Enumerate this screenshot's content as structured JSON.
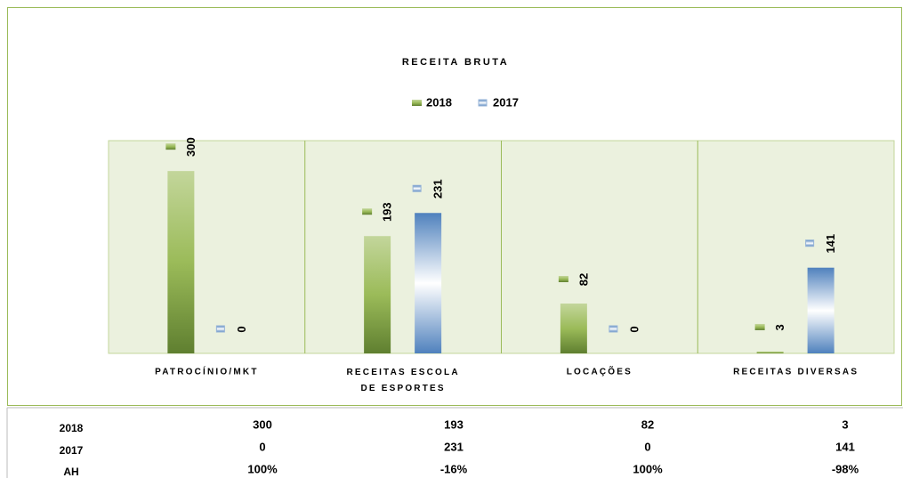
{
  "chart_data": {
    "type": "bar",
    "title": "RECEITA BRUTA",
    "categories": [
      "PATROCÍNIO/MKT",
      "RECEITAS ESCOLA DE ESPORTES",
      "LOCAÇÕES",
      "RECEITAS DIVERSAS"
    ],
    "series": [
      {
        "name": "2018",
        "color": "#9bbb59",
        "values": [
          300,
          193,
          82,
          3
        ]
      },
      {
        "name": "2017",
        "color": "#4f81bd",
        "values": [
          0,
          231,
          0,
          141
        ]
      }
    ],
    "ylim": [
      0,
      350
    ],
    "legend": "top"
  },
  "data_table": {
    "ah_label": "AH",
    "ah": [
      "100%",
      "-16%",
      "100%",
      "-98%"
    ]
  }
}
